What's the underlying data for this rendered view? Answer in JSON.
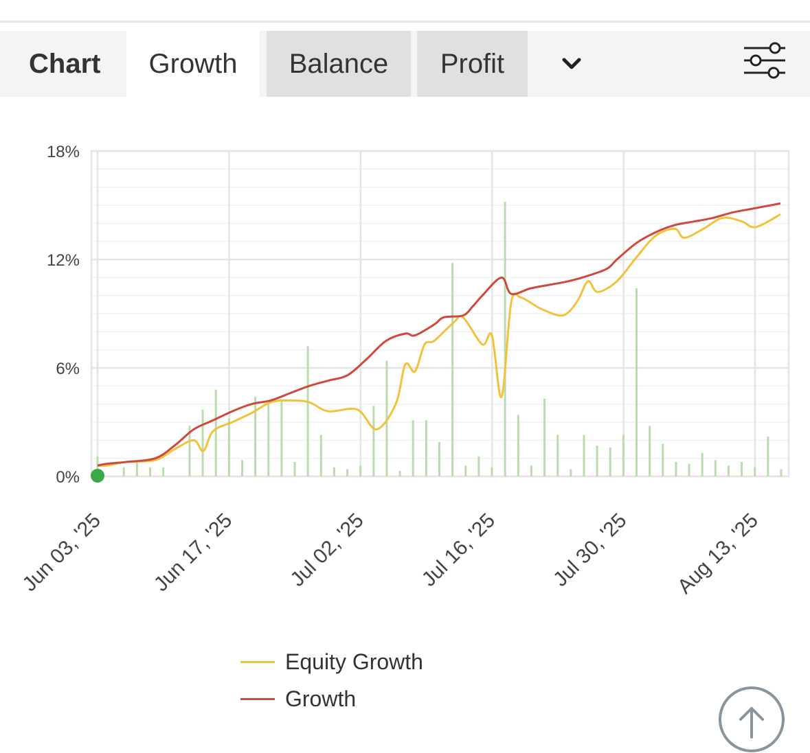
{
  "tabs": {
    "title": "Chart",
    "items": [
      {
        "label": "Growth",
        "active": true
      },
      {
        "label": "Balance",
        "active": false
      },
      {
        "label": "Profit",
        "active": false
      }
    ],
    "dropdown_icon": "chevron-down-icon",
    "settings_icon": "sliders-icon"
  },
  "colors": {
    "equity": "#f2c23a",
    "growth": "#d0473c",
    "bars": "#b7dcae",
    "start_marker": "#3aaa48",
    "grid": "#e4e4e4"
  },
  "legend": [
    {
      "label": "Equity Growth",
      "color": "#f2c23a"
    },
    {
      "label": "Growth",
      "color": "#d0473c"
    }
  ],
  "scroll_top_icon": "arrow-up-icon",
  "chart_data": {
    "type": "line",
    "y_ticks": [
      "0%",
      "6%",
      "12%",
      "18%"
    ],
    "ylim": [
      0,
      18
    ],
    "x_ticks": [
      "Jun 03, '25",
      "Jun 17, '25",
      "Jul 02, '25",
      "Jul 16, '25",
      "Jul 30, '25",
      "Aug 13, '25"
    ],
    "grid": true,
    "legend_position": "bottom",
    "series": [
      {
        "name": "Equity Growth",
        "points": [
          [
            0,
            0.6
          ],
          [
            1,
            0.6
          ],
          [
            3,
            0.8
          ],
          [
            6,
            0.9
          ],
          [
            8,
            1.5
          ],
          [
            10,
            2
          ],
          [
            11,
            1.4
          ],
          [
            12,
            2.5
          ],
          [
            14,
            3
          ],
          [
            16,
            3.5
          ],
          [
            18,
            4.1
          ],
          [
            20,
            4.2
          ],
          [
            22,
            4.1
          ],
          [
            24,
            3.6
          ],
          [
            27,
            3.7
          ],
          [
            29,
            2.6
          ],
          [
            31,
            4
          ],
          [
            32,
            6.2
          ],
          [
            33,
            5.8
          ],
          [
            34,
            7.3
          ],
          [
            35,
            7.5
          ],
          [
            37,
            8.5
          ],
          [
            38,
            8.8
          ],
          [
            40,
            7.3
          ],
          [
            41,
            7.8
          ],
          [
            42,
            4.4
          ],
          [
            43,
            9.6
          ],
          [
            44,
            9.9
          ],
          [
            46,
            9.3
          ],
          [
            48,
            8.9
          ],
          [
            49,
            9.1
          ],
          [
            50,
            9.8
          ],
          [
            51,
            10.8
          ],
          [
            52,
            10.2
          ],
          [
            54,
            10.8
          ],
          [
            56,
            12.1
          ],
          [
            58,
            13.3
          ],
          [
            60,
            13.7
          ],
          [
            61,
            13.2
          ],
          [
            63,
            13.7
          ],
          [
            65,
            14.3
          ],
          [
            67,
            14.1
          ],
          [
            68,
            13.8
          ],
          [
            69,
            13.9
          ],
          [
            71,
            14.5
          ]
        ]
      },
      {
        "name": "Growth",
        "points": [
          [
            0,
            0.6
          ],
          [
            1,
            0.7
          ],
          [
            3,
            0.8
          ],
          [
            6,
            1
          ],
          [
            8,
            1.7
          ],
          [
            10,
            2.6
          ],
          [
            12,
            3.1
          ],
          [
            14,
            3.6
          ],
          [
            16,
            4
          ],
          [
            18,
            4.2
          ],
          [
            20,
            4.6
          ],
          [
            22,
            5
          ],
          [
            24,
            5.3
          ],
          [
            26,
            5.6
          ],
          [
            28,
            6.5
          ],
          [
            30,
            7.5
          ],
          [
            32,
            7.9
          ],
          [
            33,
            7.8
          ],
          [
            35,
            8.4
          ],
          [
            36,
            8.8
          ],
          [
            38,
            8.9
          ],
          [
            39,
            9.4
          ],
          [
            40,
            10
          ],
          [
            42,
            11
          ],
          [
            43,
            10.1
          ],
          [
            45,
            10.4
          ],
          [
            47,
            10.6
          ],
          [
            49,
            10.8
          ],
          [
            51,
            11.1
          ],
          [
            53,
            11.5
          ],
          [
            54,
            12.0
          ],
          [
            56,
            12.9
          ],
          [
            58,
            13.5
          ],
          [
            60,
            13.9
          ],
          [
            62,
            14.1
          ],
          [
            64,
            14.3
          ],
          [
            66,
            14.6
          ],
          [
            68,
            14.8
          ],
          [
            70,
            15.0
          ],
          [
            71,
            15.1
          ]
        ]
      }
    ],
    "daily_bars": [
      [
        0,
        1.1
      ],
      [
        2,
        0.5
      ],
      [
        3,
        0.9
      ],
      [
        4,
        0.5
      ],
      [
        5,
        0.5
      ],
      [
        7,
        2.8
      ],
      [
        8,
        3.7
      ],
      [
        9,
        4.8
      ],
      [
        10,
        3.2
      ],
      [
        11,
        0.9
      ],
      [
        12,
        4.4
      ],
      [
        13,
        4
      ],
      [
        14,
        4.2
      ],
      [
        15,
        0.8
      ],
      [
        16,
        7.2
      ],
      [
        17,
        2.3
      ],
      [
        18,
        0.5
      ],
      [
        19,
        0.4
      ],
      [
        20,
        0.6
      ],
      [
        21,
        3.9
      ],
      [
        22,
        6.4
      ],
      [
        23,
        0.3
      ],
      [
        24,
        3.1
      ],
      [
        25,
        3.1
      ],
      [
        26,
        1.9
      ],
      [
        27,
        11.8
      ],
      [
        28,
        0.6
      ],
      [
        29,
        1.1
      ],
      [
        30,
        0.5
      ],
      [
        31,
        15.2
      ],
      [
        32,
        3.4
      ],
      [
        33,
        0.6
      ],
      [
        34,
        4.3
      ],
      [
        35,
        2.3
      ],
      [
        36,
        0.4
      ],
      [
        37,
        2.3
      ],
      [
        38,
        1.7
      ],
      [
        39,
        1.6
      ],
      [
        40,
        2.3
      ],
      [
        41,
        10.4
      ],
      [
        42,
        2.8
      ],
      [
        43,
        1.8
      ],
      [
        44,
        0.8
      ],
      [
        45,
        0.7
      ],
      [
        46,
        1.3
      ],
      [
        47,
        0.9
      ],
      [
        48,
        0.6
      ],
      [
        49,
        0.8
      ],
      [
        50,
        0.5
      ],
      [
        51,
        2.2
      ],
      [
        52,
        0.4
      ]
    ]
  }
}
